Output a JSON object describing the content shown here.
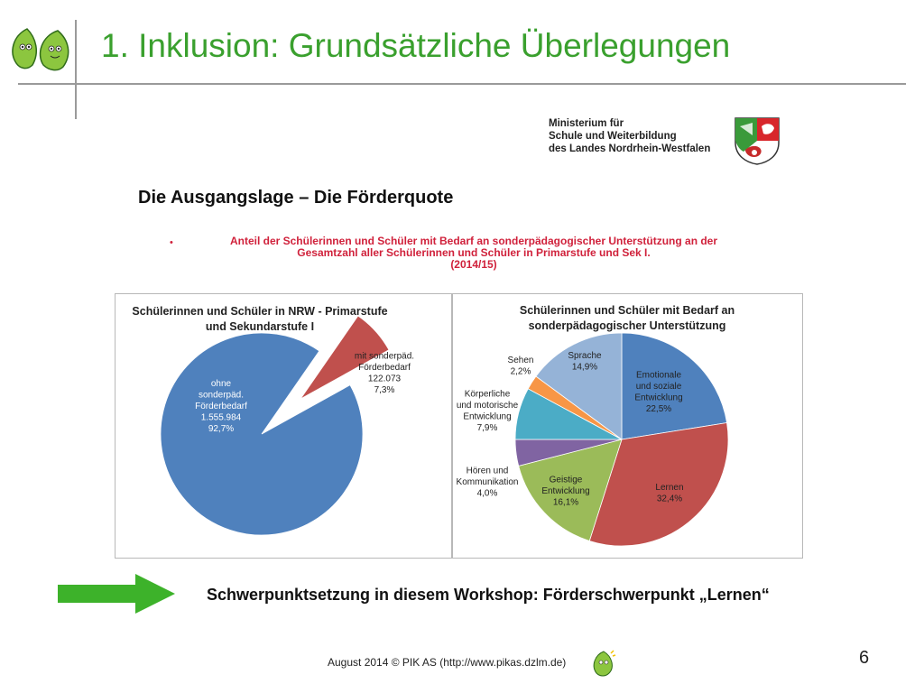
{
  "slide": {
    "title": "1. Inklusion: Grundsätzliche Überlegungen",
    "ministry_lines": [
      "Ministerium für",
      "Schule und Weiterbildung",
      "des Landes Nordrhein-Westfalen"
    ],
    "heading": "Die Ausgangslage – Die Förderquote",
    "bullet": "•",
    "subtitle_lines": [
      "Anteil der Schülerinnen und Schüler mit Bedarf an sonderpädagogischer Unterstützung an der",
      "Gesamtzahl aller Schülerinnen und Schüler in Primarstufe und Sek I.",
      "(2014/15)"
    ],
    "workshop_text": "Schwerpunktsetzung in diesem Workshop: Förderschwerpunkt „Lernen“",
    "footer": "August 2014 © PIK AS (http://www.pikas.dzlm.de)",
    "page_number": "6",
    "accent_color": "#3aa02e",
    "arrow_color": "#3db22a"
  },
  "chart_data": [
    {
      "type": "pie",
      "title_lines": [
        "Schülerinnen und Schüler in NRW - Primarstufe",
        "und Sekundarstufe I"
      ],
      "slices": [
        {
          "label_lines": [
            "ohne",
            "sonderpäd.",
            "Förderbedarf",
            "1.555.984",
            "92,7%"
          ],
          "value": 1555984,
          "percent": 92.7,
          "color": "#4f81bd",
          "exploded": false
        },
        {
          "label_lines": [
            "mit sonderpäd.",
            "Förderbedarf",
            "122.073",
            "7,3%"
          ],
          "value": 122073,
          "percent": 7.3,
          "color": "#c0504d",
          "exploded": true
        }
      ]
    },
    {
      "type": "pie",
      "title_lines": [
        "Schülerinnen und Schüler mit Bedarf an",
        "sonderpädagogischer Unterstützung"
      ],
      "slices": [
        {
          "label_lines": [
            "Emotionale",
            "und soziale",
            "Entwicklung",
            "22,5%"
          ],
          "percent": 22.5,
          "color": "#4f81bd"
        },
        {
          "label_lines": [
            "Lernen",
            "32,4%"
          ],
          "percent": 32.4,
          "color": "#c0504d"
        },
        {
          "label_lines": [
            "Geistige",
            "Entwicklung",
            "16,1%"
          ],
          "percent": 16.1,
          "color": "#9bbb59"
        },
        {
          "label_lines": [
            "Hören und",
            "Kommunikation",
            "4,0%"
          ],
          "percent": 4.0,
          "color": "#8064a2"
        },
        {
          "label_lines": [
            "Körperliche",
            "und motorische",
            "Entwicklung",
            "7,9%"
          ],
          "percent": 7.9,
          "color": "#4bacc6"
        },
        {
          "label_lines": [
            "Sehen",
            "2,2%"
          ],
          "percent": 2.2,
          "color": "#f79646"
        },
        {
          "label_lines": [
            "Sprache",
            "14,9%"
          ],
          "percent": 14.9,
          "color": "#95b3d7"
        }
      ]
    }
  ]
}
